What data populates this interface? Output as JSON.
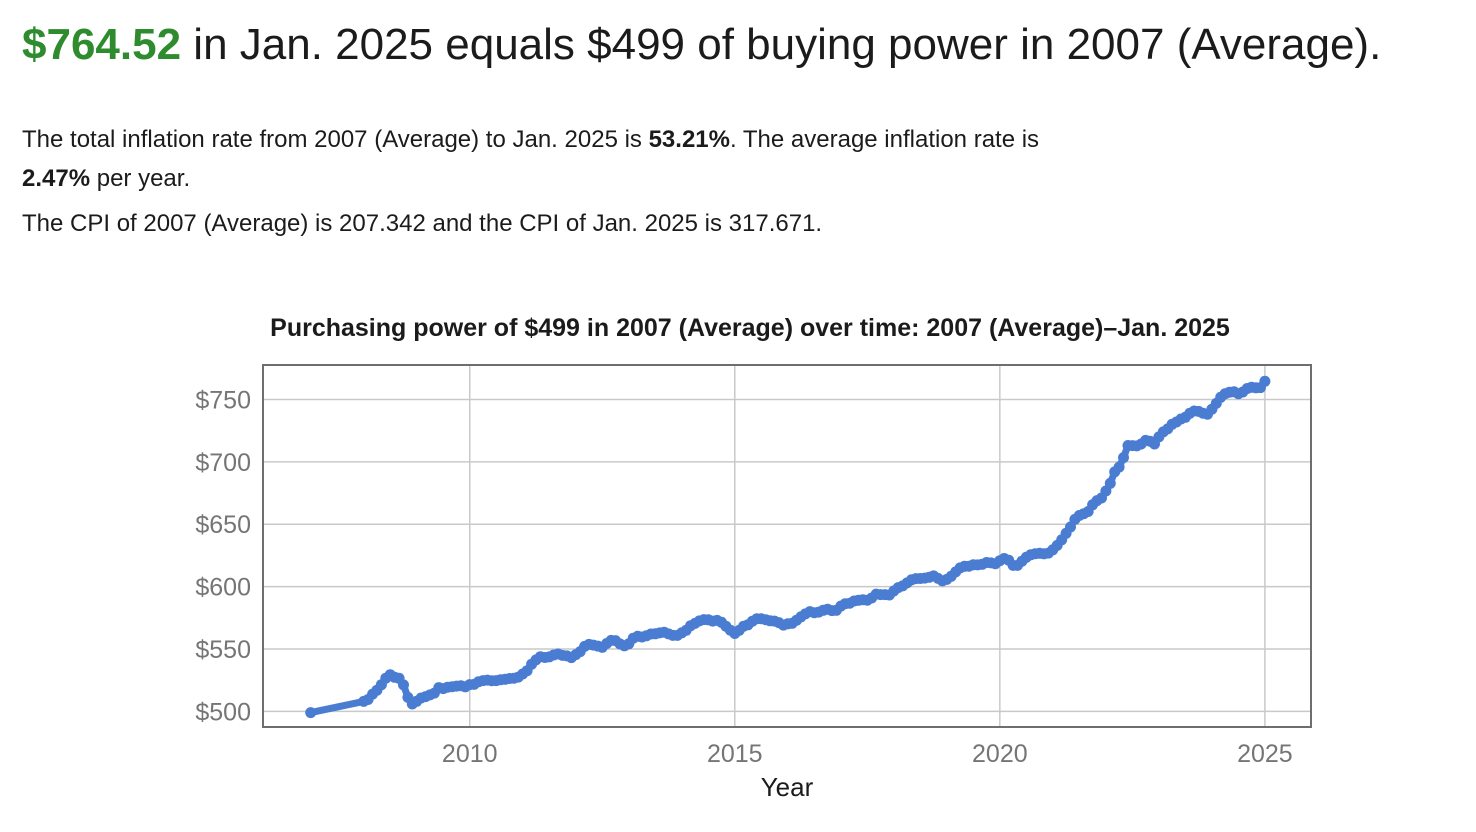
{
  "headline": {
    "amount": "$764.52",
    "rest": " in Jan. 2025 equals $499 of buying power in 2007 (Average).",
    "amount_color": "#2e8b2e"
  },
  "summary": {
    "line1_part1": "The total inflation rate from 2007 (Average) to Jan. 2025 is ",
    "total_rate": "53.21%",
    "line1_part2": ". The average inflation rate is",
    "avg_rate": "2.47%",
    "line2_part2": " per year.",
    "cpi_line": "The CPI of 2007 (Average) is 207.342 and the CPI of Jan. 2025 is 317.671."
  },
  "chart_data": {
    "type": "line",
    "title": "Purchasing power of $499 in 2007 (Average) over time: 2007 (Average)–Jan. 2025",
    "xlabel": "Year",
    "ylabel": "",
    "grid": true,
    "legend": "none",
    "x_ticks": [
      2010,
      2015,
      2020,
      2025
    ],
    "y_ticks": [
      500,
      550,
      600,
      650,
      700,
      750
    ],
    "y_tick_prefix": "$",
    "xlim": [
      2006.1,
      2025.87
    ],
    "ylim": [
      487.5,
      777.6
    ],
    "line_color": "#4a7dd2",
    "tick_color": "#757575",
    "grid_color": "#c9c9c9",
    "line_width": 7,
    "marker_radius": 5.5,
    "series": [
      {
        "name": "Purchasing power",
        "x": [
          2007,
          2008,
          2008.083,
          2008.167,
          2008.25,
          2008.333,
          2008.417,
          2008.5,
          2008.583,
          2008.667,
          2008.75,
          2008.833,
          2008.917,
          2009,
          2009.083,
          2009.167,
          2009.25,
          2009.333,
          2009.417,
          2009.5,
          2009.583,
          2009.667,
          2009.75,
          2009.833,
          2009.917,
          2010,
          2010.083,
          2010.167,
          2010.25,
          2010.333,
          2010.417,
          2010.5,
          2010.583,
          2010.667,
          2010.75,
          2010.833,
          2010.917,
          2011,
          2011.083,
          2011.167,
          2011.25,
          2011.333,
          2011.417,
          2011.5,
          2011.583,
          2011.667,
          2011.75,
          2011.833,
          2011.917,
          2012,
          2012.083,
          2012.167,
          2012.25,
          2012.333,
          2012.417,
          2012.5,
          2012.583,
          2012.667,
          2012.75,
          2012.833,
          2012.917,
          2013,
          2013.083,
          2013.167,
          2013.25,
          2013.333,
          2013.417,
          2013.5,
          2013.583,
          2013.667,
          2013.75,
          2013.833,
          2013.917,
          2014,
          2014.083,
          2014.167,
          2014.25,
          2014.333,
          2014.417,
          2014.5,
          2014.583,
          2014.667,
          2014.75,
          2014.833,
          2014.917,
          2015,
          2015.083,
          2015.167,
          2015.25,
          2015.333,
          2015.417,
          2015.5,
          2015.583,
          2015.667,
          2015.75,
          2015.833,
          2015.917,
          2016,
          2016.083,
          2016.167,
          2016.25,
          2016.333,
          2016.417,
          2016.5,
          2016.583,
          2016.667,
          2016.75,
          2016.833,
          2016.917,
          2017,
          2017.083,
          2017.167,
          2017.25,
          2017.333,
          2017.417,
          2017.5,
          2017.583,
          2017.667,
          2017.75,
          2017.833,
          2017.917,
          2018,
          2018.083,
          2018.167,
          2018.25,
          2018.333,
          2018.417,
          2018.5,
          2018.583,
          2018.667,
          2018.75,
          2018.833,
          2018.917,
          2019,
          2019.083,
          2019.167,
          2019.25,
          2019.333,
          2019.417,
          2019.5,
          2019.583,
          2019.667,
          2019.75,
          2019.833,
          2019.917,
          2020,
          2020.083,
          2020.167,
          2020.25,
          2020.333,
          2020.417,
          2020.5,
          2020.583,
          2020.667,
          2020.75,
          2020.833,
          2020.917,
          2021,
          2021.083,
          2021.167,
          2021.25,
          2021.333,
          2021.417,
          2021.5,
          2021.583,
          2021.667,
          2021.75,
          2021.833,
          2021.917,
          2022,
          2022.083,
          2022.167,
          2022.25,
          2022.333,
          2022.417,
          2022.5,
          2022.583,
          2022.667,
          2022.75,
          2022.833,
          2022.917,
          2023,
          2023.083,
          2023.167,
          2023.25,
          2023.333,
          2023.417,
          2023.5,
          2023.583,
          2023.667,
          2023.75,
          2023.833,
          2023.917,
          2024,
          2024.083,
          2024.167,
          2024.25,
          2024.333,
          2024.417,
          2024.5,
          2024.583,
          2024.667,
          2024.75,
          2024.833,
          2024.917,
          2025
        ],
        "y": [
          499,
          508.0,
          509.5,
          513.9,
          517.0,
          521.4,
          526.6,
          529.4,
          527.3,
          526.5,
          521.2,
          511.2,
          505.9,
          508.1,
          510.7,
          511.9,
          513.2,
          514.7,
          519.1,
          518.3,
          519.4,
          519.8,
          520.3,
          520.6,
          519.7,
          521.5,
          521.6,
          523.8,
          524.7,
          525.1,
          524.6,
          524.7,
          525.4,
          525.7,
          526.4,
          526.6,
          527.5,
          530.0,
          532.6,
          537.8,
          541.3,
          543.8,
          543.2,
          543.7,
          545.2,
          546.0,
          544.9,
          544.5,
          543.1,
          545.5,
          547.9,
          552.1,
          553.7,
          553.1,
          552.3,
          551.4,
          554.4,
          556.9,
          556.7,
          554.1,
          552.6,
          554.2,
          558.7,
          560.2,
          559.6,
          560.6,
          562.0,
          562.2,
          562.9,
          563.5,
          562.1,
          560.9,
          560.9,
          563.0,
          565.0,
          568.7,
          570.5,
          572.5,
          573.6,
          573.4,
          572.4,
          572.9,
          571.4,
          568.3,
          565.1,
          562.4,
          564.9,
          568.3,
          569.4,
          572.3,
          574.3,
          574.3,
          573.5,
          572.6,
          572.4,
          571.2,
          569.2,
          570.2,
          570.6,
          573.1,
          575.8,
          578.1,
          580.0,
          579.1,
          579.6,
          581.0,
          581.8,
          580.8,
          581.0,
          584.4,
          586.3,
          586.7,
          588.5,
          589.0,
          589.5,
          589.1,
          590.9,
          594.0,
          593.6,
          593.6,
          593.3,
          596.5,
          599.2,
          600.6,
          603.0,
          605.5,
          606.4,
          606.5,
          606.8,
          607.5,
          608.6,
          606.6,
          604.6,
          605.8,
          608.3,
          611.8,
          615.0,
          616.3,
          616.4,
          617.5,
          617.4,
          617.9,
          619.3,
          619.0,
          618.4,
          620.8,
          622.5,
          621.2,
          617.0,
          617.0,
          620.4,
          623.5,
          625.5,
          626.4,
          626.7,
          626.3,
          626.9,
          629.5,
          633.0,
          637.5,
          642.7,
          647.8,
          653.9,
          657.0,
          658.4,
          660.2,
          665.6,
          668.9,
          671.0,
          676.6,
          682.8,
          691.9,
          695.8,
          703.4,
          713.1,
          713.0,
          712.8,
          714.3,
          717.2,
          716.5,
          714.3,
          720.0,
          724.0,
          726.4,
          730.1,
          731.9,
          734.3,
          735.7,
          738.9,
          740.7,
          740.4,
          739.0,
          738.2,
          742.2,
          746.8,
          751.7,
          754.6,
          755.8,
          756.1,
          754.6,
          756.0,
          758.8,
          759.7,
          759.3,
          759.5,
          764.5
        ]
      }
    ]
  }
}
